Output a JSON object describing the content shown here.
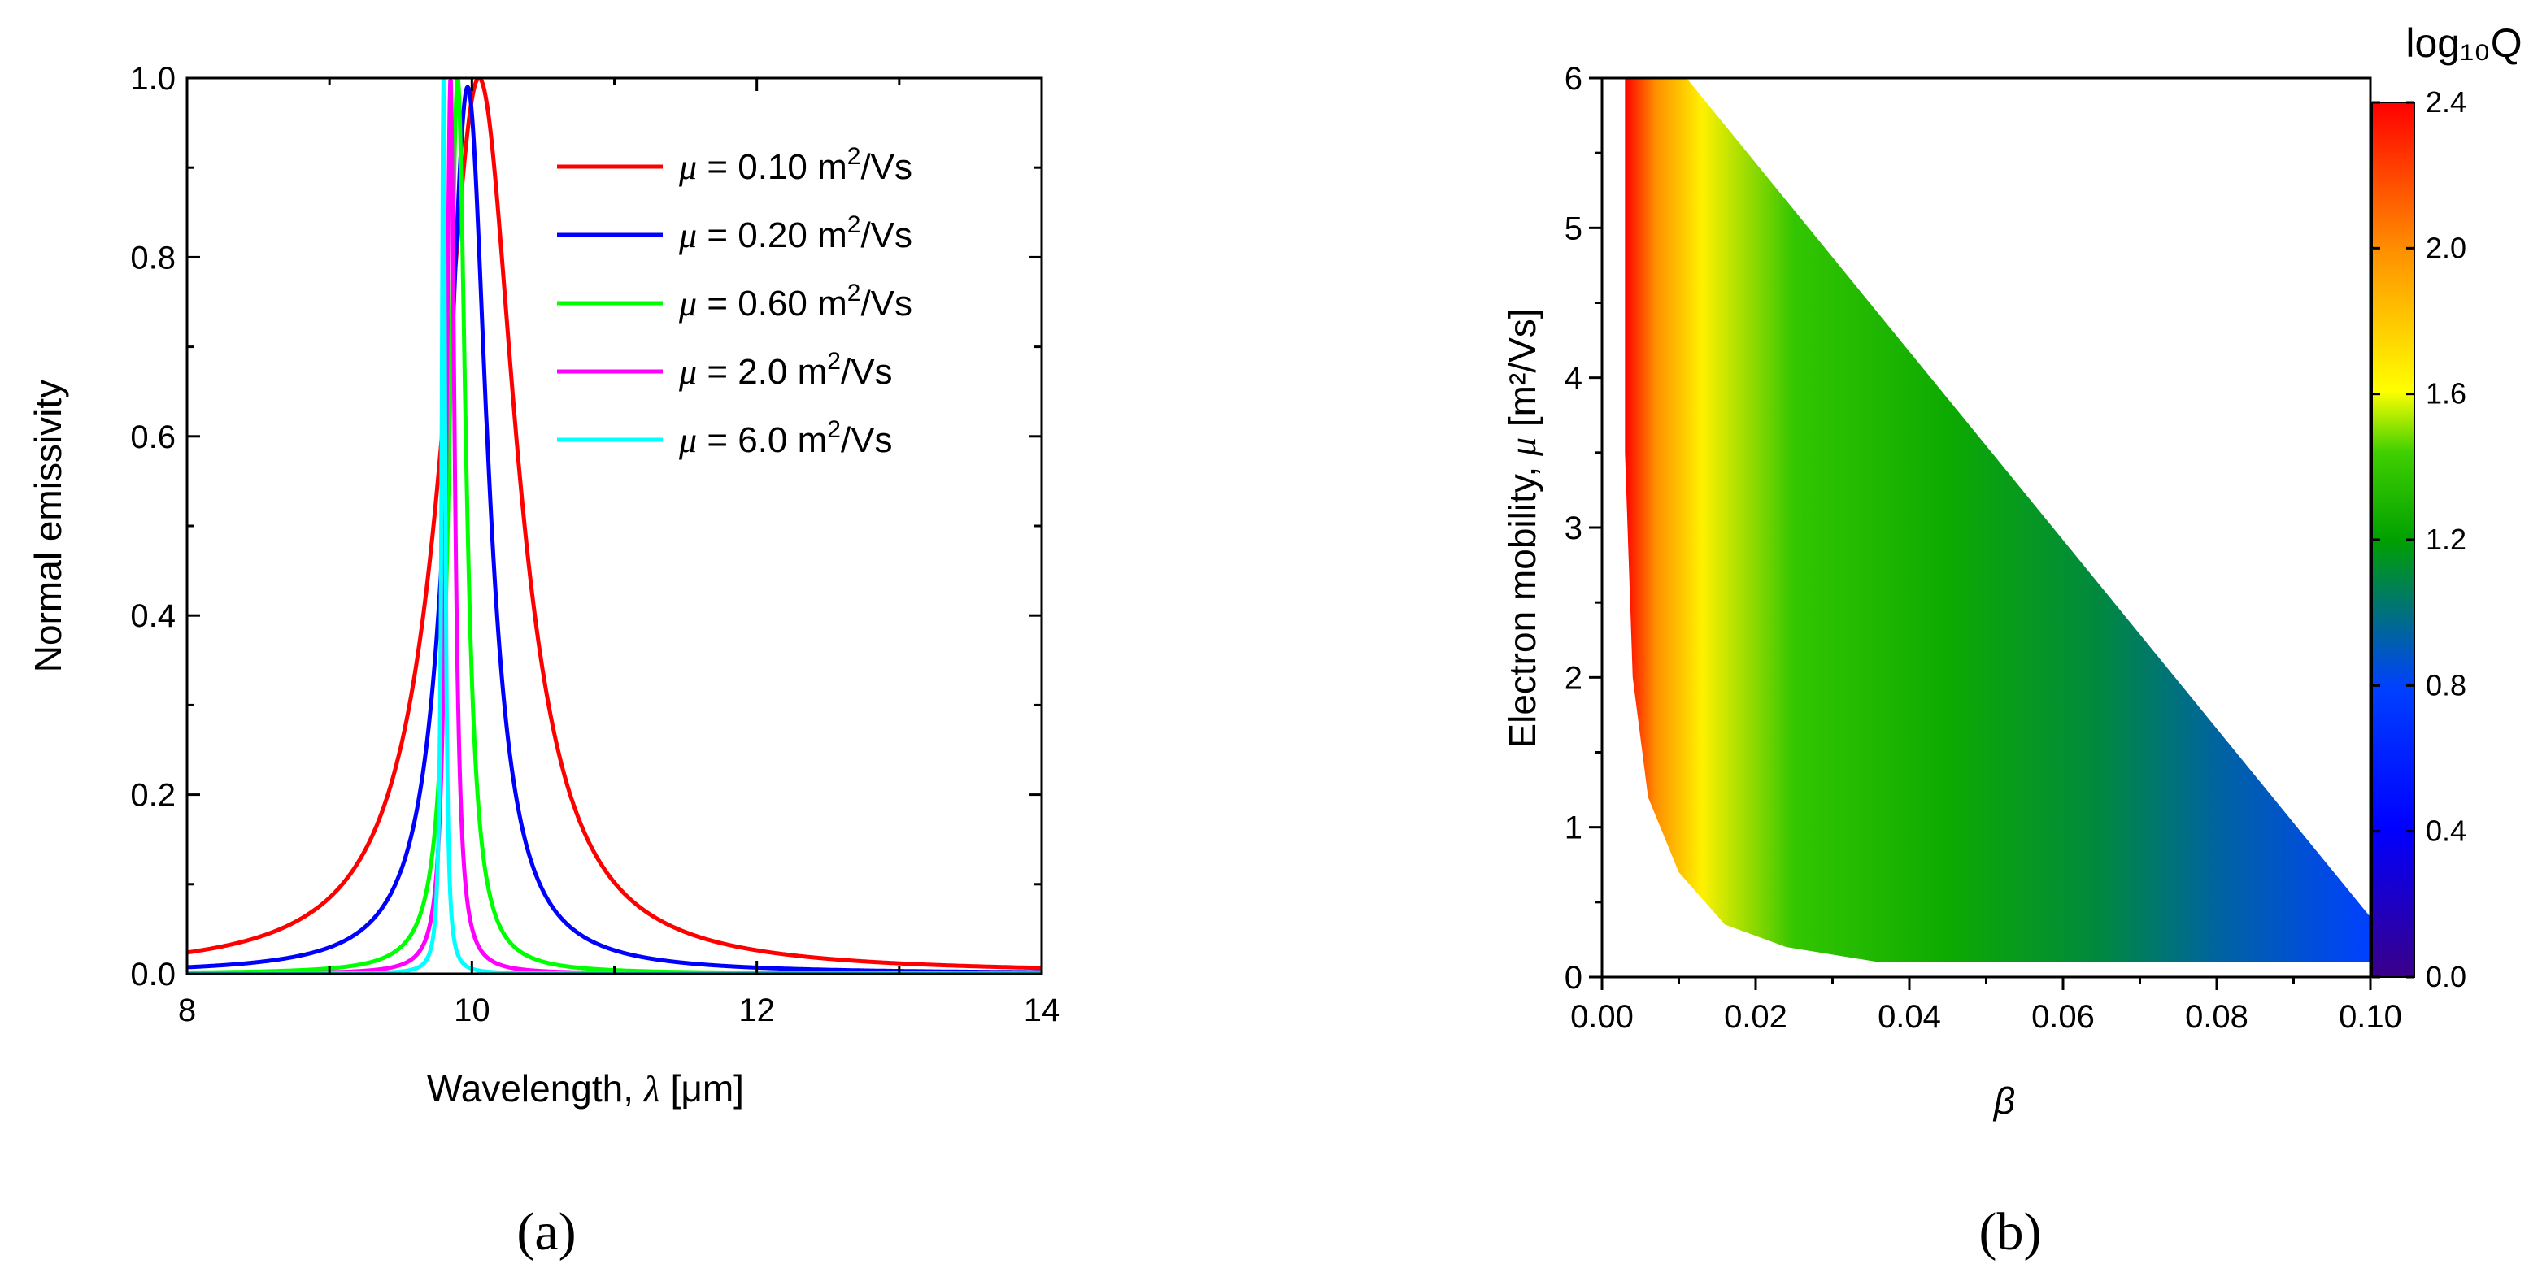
{
  "chart_data": [
    {
      "type": "line",
      "panel_label": "(a)",
      "xlabel_prefix": "Wavelength, ",
      "xlabel_symbol": "λ",
      "xlabel_suffix": " [μm]",
      "ylabel": "Normal emissivity",
      "xlim": [
        8,
        14
      ],
      "ylim": [
        0,
        1.0
      ],
      "xticks": [
        "8",
        "10",
        "12",
        "14"
      ],
      "yticks": [
        "0.0",
        "0.2",
        "0.4",
        "0.6",
        "0.8",
        "1.0"
      ],
      "legend_position": "top-right",
      "series": [
        {
          "name": "μ = 0.10 m²/Vs",
          "mu_value": "0.10",
          "color": "#ff0000",
          "peak_x": 10.05,
          "peak_y": 1.0,
          "half_width": 0.32
        },
        {
          "name": "μ = 0.20 m²/Vs",
          "mu_value": "0.20",
          "color": "#0000ff",
          "peak_x": 9.97,
          "peak_y": 0.99,
          "half_width": 0.17
        },
        {
          "name": "μ = 0.60 m²/Vs",
          "mu_value": "0.60",
          "color": "#00ff00",
          "peak_x": 9.9,
          "peak_y": 1.0,
          "half_width": 0.07
        },
        {
          "name": "μ = 2.0 m²/Vs",
          "mu_value": "2.0",
          "color": "#ff00ff",
          "peak_x": 9.85,
          "peak_y": 1.0,
          "half_width": 0.035
        },
        {
          "name": "μ = 6.0 m²/Vs",
          "mu_value": "6.0",
          "color": "#00ffff",
          "peak_x": 9.8,
          "peak_y": 1.0,
          "half_width": 0.015
        }
      ]
    },
    {
      "type": "heatmap",
      "panel_label": "(b)",
      "xlabel": "β",
      "ylabel_prefix": "Electron mobility, ",
      "ylabel_symbol": "μ",
      "ylabel_suffix": " [m²/Vs]",
      "xlim": [
        0,
        0.1
      ],
      "ylim": [
        0,
        6
      ],
      "xticks": [
        "0.00",
        "0.02",
        "0.04",
        "0.06",
        "0.08",
        "0.10"
      ],
      "yticks": [
        "0",
        "1",
        "2",
        "3",
        "4",
        "5",
        "6"
      ],
      "colorbar_title": "log₁₀Q",
      "colorbar_range": [
        0,
        2.4
      ],
      "colorbar_ticks": [
        "0.0",
        "0.4",
        "0.8",
        "1.2",
        "1.6",
        "2.0",
        "2.4"
      ],
      "region_boundary": [
        {
          "beta": 0.003,
          "mu": 6.0
        },
        {
          "beta": 0.011,
          "mu": 6.0
        },
        {
          "beta": 0.1,
          "mu": 0.4
        },
        {
          "beta": 0.1,
          "mu": 0.1
        },
        {
          "beta": 0.036,
          "mu": 0.1
        },
        {
          "beta": 0.024,
          "mu": 0.2
        },
        {
          "beta": 0.016,
          "mu": 0.35
        },
        {
          "beta": 0.01,
          "mu": 0.7
        },
        {
          "beta": 0.006,
          "mu": 1.2
        },
        {
          "beta": 0.004,
          "mu": 2.0
        },
        {
          "beta": 0.003,
          "mu": 3.5
        }
      ],
      "color_gradient_along_beta": [
        {
          "beta": 0.003,
          "log10Q": 2.4
        },
        {
          "beta": 0.007,
          "log10Q": 2.0
        },
        {
          "beta": 0.013,
          "log10Q": 1.65
        },
        {
          "beta": 0.025,
          "log10Q": 1.4
        },
        {
          "beta": 0.045,
          "log10Q": 1.25
        },
        {
          "beta": 0.065,
          "log10Q": 1.1
        },
        {
          "beta": 0.08,
          "log10Q": 0.95
        },
        {
          "beta": 0.1,
          "log10Q": 0.8
        }
      ]
    }
  ]
}
